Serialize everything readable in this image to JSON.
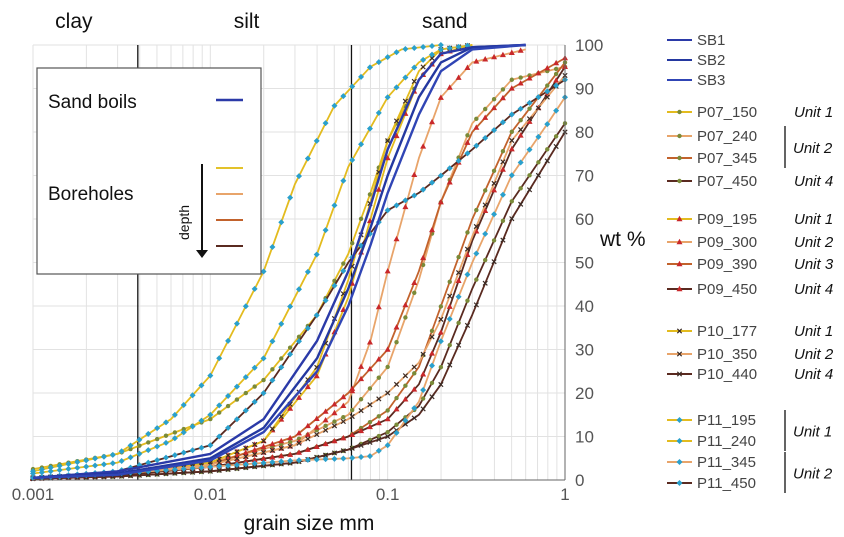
{
  "chart_data": {
    "type": "line",
    "xscale": "log",
    "xlim": [
      0.001,
      1
    ],
    "ylim": [
      0,
      100
    ],
    "xlabel": "grain size mm",
    "ylabel": "wt %",
    "xticks": [
      "0.001",
      "0.01",
      "0.1",
      "1"
    ],
    "yticks": [
      "0",
      "10",
      "20",
      "30",
      "40",
      "50",
      "60",
      "70",
      "80",
      "90",
      "100"
    ],
    "zones": [
      {
        "label": "clay",
        "boundary": 0.0039
      },
      {
        "label": "silt",
        "boundary": 0.0625
      },
      {
        "label": "sand"
      }
    ],
    "inset": {
      "sand_boils": "Sand boils",
      "boreholes": "Boreholes",
      "depth": "depth",
      "sand_boils_color": "#2b3aa8",
      "depth_colors": [
        "#e3c22a",
        "#e8a46a",
        "#c2622c",
        "#5a2a20"
      ]
    },
    "series": [
      {
        "name": "SB1",
        "group": "sb",
        "color": "#2b3aa8",
        "marker": "none",
        "points": [
          [
            0.001,
            0.5
          ],
          [
            0.003,
            2
          ],
          [
            0.01,
            6
          ],
          [
            0.02,
            14
          ],
          [
            0.04,
            32
          ],
          [
            0.06,
            48
          ],
          [
            0.08,
            63
          ],
          [
            0.1,
            76
          ],
          [
            0.15,
            92
          ],
          [
            0.2,
            98
          ],
          [
            0.3,
            99.5
          ],
          [
            0.6,
            100
          ]
        ]
      },
      {
        "name": "SB2",
        "group": "sb",
        "color": "#2438a0",
        "marker": "none",
        "points": [
          [
            0.001,
            0.5
          ],
          [
            0.003,
            1.5
          ],
          [
            0.01,
            5
          ],
          [
            0.02,
            12
          ],
          [
            0.04,
            28
          ],
          [
            0.06,
            44
          ],
          [
            0.08,
            58
          ],
          [
            0.1,
            70
          ],
          [
            0.15,
            88
          ],
          [
            0.2,
            96
          ],
          [
            0.3,
            99.5
          ],
          [
            0.6,
            100
          ]
        ]
      },
      {
        "name": "SB3",
        "group": "sb",
        "color": "#3045b5",
        "marker": "none",
        "points": [
          [
            0.001,
            0.5
          ],
          [
            0.003,
            1.2
          ],
          [
            0.01,
            4.5
          ],
          [
            0.02,
            11
          ],
          [
            0.04,
            25
          ],
          [
            0.06,
            40
          ],
          [
            0.08,
            54
          ],
          [
            0.1,
            66
          ],
          [
            0.15,
            84
          ],
          [
            0.2,
            94
          ],
          [
            0.3,
            99
          ],
          [
            0.6,
            100
          ]
        ]
      },
      {
        "name": "P07_150",
        "group": "P07",
        "color": "#e3bb1e",
        "marker": "dot",
        "dot": "#7a8a38",
        "unit": "Unit 1",
        "points": [
          [
            0.001,
            2.5
          ],
          [
            0.003,
            6
          ],
          [
            0.01,
            14
          ],
          [
            0.02,
            23
          ],
          [
            0.04,
            38
          ],
          [
            0.06,
            52
          ],
          [
            0.08,
            66
          ],
          [
            0.1,
            78
          ],
          [
            0.15,
            92
          ],
          [
            0.2,
            98
          ],
          [
            0.3,
            100
          ]
        ]
      },
      {
        "name": "P07_240",
        "group": "P07",
        "color": "#e8a46a",
        "marker": "dot",
        "dot": "#7a8a38",
        "points": [
          [
            0.001,
            0.5
          ],
          [
            0.003,
            1.5
          ],
          [
            0.01,
            4
          ],
          [
            0.03,
            9
          ],
          [
            0.06,
            15
          ],
          [
            0.1,
            26
          ],
          [
            0.15,
            46
          ],
          [
            0.2,
            64
          ],
          [
            0.3,
            82
          ],
          [
            0.5,
            92
          ],
          [
            1,
            95
          ]
        ]
      },
      {
        "name": "P07_345",
        "group": "P07",
        "color": "#c2622c",
        "marker": "dot",
        "dot": "#7a8a38",
        "points": [
          [
            0.001,
            0.3
          ],
          [
            0.003,
            1
          ],
          [
            0.01,
            3
          ],
          [
            0.03,
            6
          ],
          [
            0.06,
            10
          ],
          [
            0.1,
            16
          ],
          [
            0.15,
            26
          ],
          [
            0.2,
            40
          ],
          [
            0.3,
            60
          ],
          [
            0.5,
            80
          ],
          [
            1,
            96
          ]
        ]
      },
      {
        "name": "P07_450",
        "group": "P07",
        "color": "#5a2a20",
        "marker": "dot",
        "dot": "#7a8a38",
        "unit": "Unit 4",
        "points": [
          [
            0.001,
            0.3
          ],
          [
            0.003,
            0.8
          ],
          [
            0.01,
            2
          ],
          [
            0.03,
            4
          ],
          [
            0.06,
            7
          ],
          [
            0.1,
            11
          ],
          [
            0.15,
            17
          ],
          [
            0.2,
            26
          ],
          [
            0.3,
            44
          ],
          [
            0.5,
            64
          ],
          [
            1,
            82
          ]
        ]
      },
      {
        "name": "P09_195",
        "group": "P09",
        "color": "#e3bb1e",
        "marker": "tri",
        "dot": "#c8282a",
        "unit": "Unit 1",
        "points": [
          [
            0.001,
            0.5
          ],
          [
            0.003,
            1.5
          ],
          [
            0.01,
            4
          ],
          [
            0.02,
            9
          ],
          [
            0.04,
            24
          ],
          [
            0.06,
            42
          ],
          [
            0.08,
            60
          ],
          [
            0.1,
            74
          ],
          [
            0.15,
            92
          ],
          [
            0.2,
            98
          ],
          [
            0.3,
            100
          ]
        ]
      },
      {
        "name": "P09_300",
        "group": "P09",
        "color": "#e8a46a",
        "marker": "tri",
        "dot": "#c8282a",
        "unit": "Unit 2",
        "points": [
          [
            0.001,
            0.5
          ],
          [
            0.003,
            1.3
          ],
          [
            0.01,
            3.5
          ],
          [
            0.03,
            8
          ],
          [
            0.06,
            18
          ],
          [
            0.08,
            32
          ],
          [
            0.1,
            48
          ],
          [
            0.15,
            74
          ],
          [
            0.2,
            88
          ],
          [
            0.3,
            96
          ],
          [
            0.6,
            99
          ]
        ]
      },
      {
        "name": "P09_390",
        "group": "P09",
        "color": "#c2622c",
        "marker": "tri",
        "dot": "#c8282a",
        "unit": "Unit 3",
        "points": [
          [
            0.001,
            0.4
          ],
          [
            0.003,
            1.2
          ],
          [
            0.01,
            3.5
          ],
          [
            0.03,
            10
          ],
          [
            0.06,
            20
          ],
          [
            0.1,
            30
          ],
          [
            0.15,
            48
          ],
          [
            0.2,
            64
          ],
          [
            0.3,
            80
          ],
          [
            0.5,
            90
          ],
          [
            1,
            97
          ]
        ]
      },
      {
        "name": "P09_450",
        "group": "P09",
        "color": "#5a2a20",
        "marker": "tri",
        "dot": "#c8282a",
        "unit": "Unit 4",
        "points": [
          [
            0.001,
            0.3
          ],
          [
            0.003,
            1
          ],
          [
            0.01,
            3
          ],
          [
            0.03,
            6
          ],
          [
            0.06,
            10
          ],
          [
            0.1,
            14
          ],
          [
            0.15,
            22
          ],
          [
            0.2,
            34
          ],
          [
            0.3,
            55
          ],
          [
            0.5,
            76
          ],
          [
            1,
            95
          ]
        ]
      },
      {
        "name": "P10_177",
        "group": "P10",
        "color": "#e3bb1e",
        "marker": "x",
        "dot": "#3a2a24",
        "unit": "Unit 1",
        "points": [
          [
            0.001,
            0.5
          ],
          [
            0.003,
            1.5
          ],
          [
            0.01,
            4
          ],
          [
            0.02,
            9
          ],
          [
            0.04,
            26
          ],
          [
            0.06,
            46
          ],
          [
            0.08,
            64
          ],
          [
            0.1,
            78
          ],
          [
            0.15,
            94
          ],
          [
            0.2,
            99
          ],
          [
            0.3,
            100
          ]
        ]
      },
      {
        "name": "P10_350",
        "group": "P10",
        "color": "#e8a46a",
        "marker": "x",
        "dot": "#3a2a24",
        "unit": "Unit 2",
        "points": [
          [
            0.001,
            0.5
          ],
          [
            0.003,
            1.3
          ],
          [
            0.01,
            3.5
          ],
          [
            0.03,
            8
          ],
          [
            0.06,
            14
          ],
          [
            0.1,
            20
          ],
          [
            0.15,
            27
          ],
          [
            0.2,
            37
          ],
          [
            0.3,
            56
          ],
          [
            0.5,
            78
          ],
          [
            1,
            93
          ]
        ]
      },
      {
        "name": "P10_440",
        "group": "P10",
        "color": "#5a2a20",
        "marker": "x",
        "dot": "#3a2a24",
        "unit": "Unit 4",
        "points": [
          [
            0.001,
            0.3
          ],
          [
            0.003,
            0.8
          ],
          [
            0.01,
            2
          ],
          [
            0.03,
            4
          ],
          [
            0.06,
            7
          ],
          [
            0.1,
            10
          ],
          [
            0.15,
            15
          ],
          [
            0.2,
            22
          ],
          [
            0.3,
            38
          ],
          [
            0.5,
            60
          ],
          [
            1,
            80
          ]
        ]
      },
      {
        "name": "P11_195",
        "group": "P11",
        "color": "#e3bb1e",
        "marker": "dia",
        "dot": "#2aa0cc",
        "points": [
          [
            0.001,
            2
          ],
          [
            0.003,
            6
          ],
          [
            0.006,
            14
          ],
          [
            0.01,
            24
          ],
          [
            0.02,
            48
          ],
          [
            0.03,
            68
          ],
          [
            0.05,
            86
          ],
          [
            0.08,
            95
          ],
          [
            0.12,
            99
          ],
          [
            0.2,
            100
          ]
        ]
      },
      {
        "name": "P11_240",
        "group": "P11",
        "color": "#e3bb1e",
        "marker": "dia",
        "dot": "#2aa0cc",
        "points": [
          [
            0.001,
            1.5
          ],
          [
            0.003,
            4
          ],
          [
            0.006,
            9
          ],
          [
            0.01,
            15
          ],
          [
            0.02,
            28
          ],
          [
            0.04,
            52
          ],
          [
            0.06,
            72
          ],
          [
            0.1,
            88
          ],
          [
            0.15,
            96
          ],
          [
            0.2,
            99
          ],
          [
            0.3,
            100
          ]
        ]
      },
      {
        "name": "P11_345",
        "group": "P11",
        "color": "#e8a46a",
        "marker": "dia",
        "dot": "#2aa0cc",
        "points": [
          [
            0.001,
            0.5
          ],
          [
            0.003,
            1.5
          ],
          [
            0.01,
            3
          ],
          [
            0.03,
            4.5
          ],
          [
            0.06,
            5
          ],
          [
            0.08,
            5.5
          ],
          [
            0.1,
            8
          ],
          [
            0.15,
            18
          ],
          [
            0.2,
            32
          ],
          [
            0.3,
            50
          ],
          [
            0.5,
            70
          ],
          [
            0.8,
            82
          ],
          [
            1,
            88
          ]
        ]
      },
      {
        "name": "P11_450",
        "group": "P11",
        "color": "#5a2a20",
        "marker": "dia",
        "dot": "#2aa0cc",
        "points": [
          [
            0.001,
            0.5
          ],
          [
            0.003,
            2
          ],
          [
            0.01,
            8
          ],
          [
            0.02,
            20
          ],
          [
            0.04,
            38
          ],
          [
            0.06,
            50
          ],
          [
            0.1,
            62
          ],
          [
            0.15,
            66
          ],
          [
            0.2,
            70
          ],
          [
            0.3,
            76
          ],
          [
            0.5,
            84
          ],
          [
            1,
            92
          ]
        ]
      }
    ],
    "bracket_units": [
      {
        "label": "Unit 2",
        "from": "P07_240",
        "to": "P07_345"
      },
      {
        "label": "Unit 1",
        "from": "P11_195",
        "to": "P11_240"
      },
      {
        "label": "Unit 2",
        "from": "P11_345",
        "to": "P11_450"
      }
    ]
  }
}
